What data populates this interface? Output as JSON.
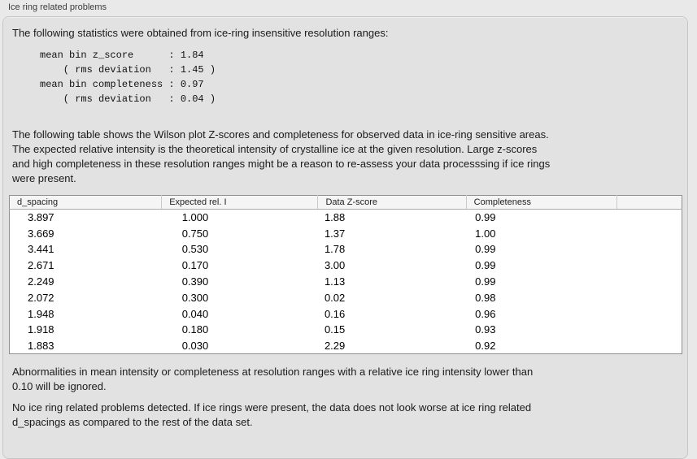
{
  "window": {
    "title": "Ice ring related problems"
  },
  "panel": {
    "intro": "The following statistics were obtained from ice-ring insensitive resolution ranges:",
    "stats_block": "mean bin z_score      : 1.84\n    ( rms deviation   : 1.45 )\nmean bin completeness : 0.97\n    ( rms deviation   : 0.04 )",
    "stats": {
      "mean_bin_z_score": "1.84",
      "z_score_rms_deviation": "1.45",
      "mean_bin_completeness": "0.97",
      "completeness_rms_deviation": "0.04"
    },
    "table_description": "The following table shows the Wilson plot Z-scores and completeness for observed data in ice-ring sensitive areas.\nThe expected relative intensity is the theoretical intensity of crystalline ice at the given resolution. Large z-scores\nand high completeness in these resolution ranges might be a reason to re-assess your data processsing if ice rings\nwere present.",
    "table": {
      "columns": [
        "d_spacing",
        "Expected rel. I",
        "Data Z-score",
        "Completeness"
      ],
      "rows": [
        [
          "3.897",
          "1.000",
          "1.88",
          "0.99"
        ],
        [
          "3.669",
          "0.750",
          "1.37",
          "1.00"
        ],
        [
          "3.441",
          "0.530",
          "1.78",
          "0.99"
        ],
        [
          "2.671",
          "0.170",
          "3.00",
          "0.99"
        ],
        [
          "2.249",
          "0.390",
          "1.13",
          "0.99"
        ],
        [
          "2.072",
          "0.300",
          "0.02",
          "0.98"
        ],
        [
          "1.948",
          "0.040",
          "0.16",
          "0.96"
        ],
        [
          "1.918",
          "0.180",
          "0.15",
          "0.93"
        ],
        [
          "1.883",
          "0.030",
          "2.29",
          "0.92"
        ]
      ]
    },
    "note_ignore": "Abnormalities in mean intensity or completeness at resolution ranges with a relative ice ring intensity lower than\n0.10 will be ignored.",
    "conclusion": "No ice ring related problems detected. If ice rings were present, the data does not look worse at ice ring related\nd_spacings as compared to the rest of the data set."
  },
  "colors": {
    "window_background": "#e9e9e9",
    "panel_background": "#e2e2e2",
    "panel_border": "#c6c6c6",
    "table_border": "#8f8f8f",
    "table_header_background": "#f5f5f5",
    "table_body_background": "#ffffff",
    "text": "#1a1a1a"
  }
}
